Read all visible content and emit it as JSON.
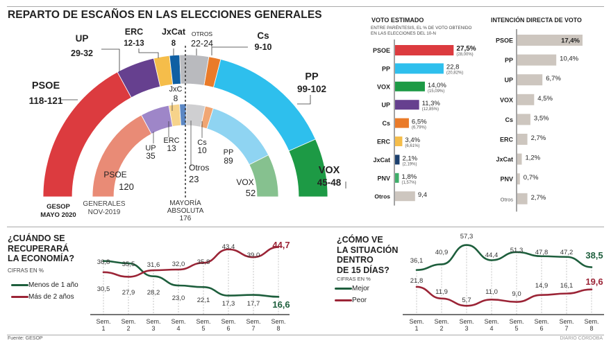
{
  "page": {
    "source": "Fuente: GESOP",
    "credit": "DIARIO CÓRDOBA"
  },
  "chart_data": [
    {
      "id": "parliament",
      "type": "pie",
      "title": "REPARTO DE ESCAÑOS EN LAS ELECCIONES GENERALES",
      "majority_label": [
        "MAYORÍA",
        "ABSOLUTA",
        "176"
      ],
      "outer": {
        "label": [
          "GESOP",
          "MAYO 2020"
        ],
        "series": [
          {
            "name": "PSOE",
            "range": "118-121",
            "seats": 119.5,
            "color": "#dc3b3f"
          },
          {
            "name": "UP",
            "range": "29-32",
            "seats": 30.5,
            "color": "#66408f"
          },
          {
            "name": "ERC",
            "range": "12-13",
            "seats": 12.5,
            "color": "#f5bd4a"
          },
          {
            "name": "JxCat",
            "range": "8",
            "seats": 8,
            "color": "#0f5fa3"
          },
          {
            "name": "OTROS",
            "range": "22-24",
            "seats": 23,
            "color": "#b9babe"
          },
          {
            "name": "Cs",
            "range": "9-10",
            "seats": 9.5,
            "color": "#ea7b29"
          },
          {
            "name": "PP",
            "range": "99-102",
            "seats": 100.5,
            "color": "#2ebfed"
          },
          {
            "name": "VOX",
            "range": "45-48",
            "seats": 46.5,
            "color": "#1d9a45"
          }
        ]
      },
      "inner": {
        "label": [
          "GENERALES",
          "NOV-2019"
        ],
        "series": [
          {
            "name": "PSOE",
            "seats": 120,
            "color": "#e98b76"
          },
          {
            "name": "UP",
            "seats": 35,
            "color": "#9e86c8"
          },
          {
            "name": "ERC",
            "seats": 13,
            "color": "#f6d38b"
          },
          {
            "name": "JxC",
            "seats": 8,
            "color": "#5b87c4"
          },
          {
            "name": "Otros",
            "seats": 23,
            "color": "#cfcfd1"
          },
          {
            "name": "Cs",
            "seats": 10,
            "color": "#f0a673"
          },
          {
            "name": "PP",
            "seats": 89,
            "color": "#8fd4f2"
          },
          {
            "name": "VOX",
            "seats": 52,
            "color": "#86c18f"
          }
        ]
      }
    },
    {
      "id": "voto-estimado",
      "type": "bar",
      "title": "VOTO ESTIMADO",
      "subtitle": [
        "ENTRE PARÉNTESIS, EL % DE VOTO OBTENIDO",
        "EN LAS ELECCIONES DEL 10-N"
      ],
      "categories": [
        "PSOE",
        "PP",
        "VOX",
        "UP",
        "Cs",
        "ERC",
        "JxCat",
        "PNV",
        "Otros"
      ],
      "values": [
        27.5,
        22.8,
        14.0,
        11.3,
        6.5,
        3.4,
        2.1,
        1.8,
        9.4
      ],
      "value_labels": [
        "27,5%",
        "22,8",
        "14,0%",
        "11,3%",
        "6,5%",
        "3,4%",
        "2,1%",
        "1,8%",
        "9,4"
      ],
      "previous_labels": [
        "(28,00%)",
        "(20,82%)",
        "(15,09%)",
        "(12,85%)",
        "(6,79%)",
        "(6,61%)",
        "(2,19%)",
        "(1,57%)",
        ""
      ],
      "colors": [
        "#dc3b3f",
        "#2ebfed",
        "#1d9a45",
        "#66408f",
        "#ea7b29",
        "#f5bd4a",
        "#1b3f6e",
        "#3fae6a",
        "#cdc6bf"
      ],
      "xlim": [
        0,
        30
      ]
    },
    {
      "id": "intencion-directa",
      "type": "bar",
      "title": "INTENCIÓN DIRECTA DE VOTO",
      "categories": [
        "PSOE",
        "PP",
        "UP",
        "VOX",
        "Cs",
        "ERC",
        "JxCat",
        "PNV",
        "Otros"
      ],
      "values": [
        17.4,
        10.4,
        6.7,
        4.5,
        3.5,
        2.7,
        1.2,
        0.7,
        2.7
      ],
      "value_labels": [
        "17,4%",
        "10,4%",
        "6,7%",
        "4,5%",
        "3,5%",
        "2,7%",
        "1,2%",
        "0,7%",
        "2,7%"
      ],
      "color": "#cdc6bf",
      "xlim": [
        0,
        18
      ]
    },
    {
      "id": "economia",
      "type": "line",
      "title": [
        "¿CUÁNDO SE",
        "RECUPERARÁ",
        "LA ECONOMÍA?"
      ],
      "unit_label": "CIFRAS EN %",
      "categories": [
        [
          "Sem.",
          "1"
        ],
        [
          "Sem.",
          "2"
        ],
        [
          "Sem.",
          "3"
        ],
        [
          "Sem.",
          "4"
        ],
        [
          "Sem.",
          "5"
        ],
        [
          "Sem.",
          "6"
        ],
        [
          "Sem.",
          "7"
        ],
        [
          "Sem.",
          "8"
        ]
      ],
      "series": [
        {
          "name": "Menos de 1 año",
          "color": "#1d5e3c",
          "values": [
            36.8,
            35.5,
            28.2,
            23.0,
            22.1,
            17.3,
            17.7,
            16.6
          ],
          "labels": [
            "36,8",
            "35,5",
            "28,2",
            "23,0",
            "22,1",
            "17,3",
            "17,7",
            "16,6"
          ]
        },
        {
          "name": "Más de 2 años",
          "color": "#9b2436",
          "values": [
            30.5,
            27.9,
            31.6,
            32.0,
            35.8,
            43.4,
            39.0,
            44.7
          ],
          "labels": [
            "30,5",
            "27,9",
            "31,6",
            "32,0",
            "35,8",
            "43,4",
            "39,0",
            "44,7"
          ]
        }
      ],
      "ylim": [
        5,
        50
      ]
    },
    {
      "id": "situacion",
      "type": "line",
      "title": [
        "¿CÓMO VE",
        "LA SITUACIÓN",
        "DENTRO",
        "DE 15 DÍAS?"
      ],
      "unit_label": "CIFRAS EN %",
      "categories": [
        [
          "Sem.",
          "1"
        ],
        [
          "Sem.",
          "2"
        ],
        [
          "Sem.",
          "3"
        ],
        [
          "Sem.",
          "4"
        ],
        [
          "Sem.",
          "5"
        ],
        [
          "Sem.",
          "6"
        ],
        [
          "Sem.",
          "7"
        ],
        [
          "Sem.",
          "8"
        ]
      ],
      "series": [
        {
          "name": "Mejor",
          "color": "#1d5e3c",
          "values": [
            36.1,
            40.9,
            57.3,
            44.4,
            51.3,
            47.8,
            47.2,
            38.5
          ],
          "labels": [
            "36,1",
            "40,9",
            "57,3",
            "44,4",
            "51,3",
            "47,8",
            "47,2",
            "38,5"
          ]
        },
        {
          "name": "Peor",
          "color": "#9b2436",
          "values": [
            21.8,
            11.9,
            5.7,
            11.0,
            9.0,
            14.9,
            16.1,
            19.6
          ],
          "labels": [
            "21,8",
            "11,9",
            "5,7",
            "11,0",
            "9,0",
            "14,9",
            "16,1",
            "19,6"
          ]
        }
      ],
      "ylim": [
        0,
        60
      ]
    }
  ]
}
